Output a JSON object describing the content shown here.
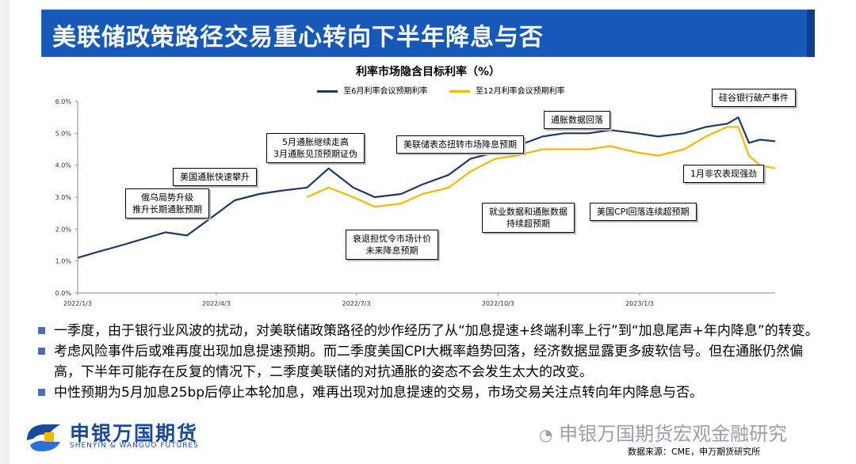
{
  "slide": {
    "title": "美联储政策路径交易重心转向下半年降息与否",
    "source": "数据来源：CME，申万期货研究所",
    "watermark": "申银万国期货宏观金融研究",
    "logo": {
      "cn": "申银万国期货",
      "en": "SHENYIN & WANGUO FUTURES"
    }
  },
  "bullets": [
    "一季度，由于银行业风波的扰动，对美联储政策路径的炒作经历了从“加息提速+终端利率上行”到“加息尾声+年内降息”的转变。",
    "考虑风险事件后或难再度出现加息提速预期。而二季度美国CPI大概率趋势回落，经济数据显露更多疲软信号。但在通胀仍然偏高，下半年可能存在反复的情况下，二季度美联储的对抗通胀的姿态不会发生太大的改变。",
    "中性预期为5月加息25bp后停止本轮加息，难再出现对加息提速的交易，市场交易关注点转向年内降息与否。"
  ],
  "chart_data": {
    "type": "line",
    "title": "利率市场隐含目标利率（%）",
    "ylim": [
      0,
      6
    ],
    "yticks": [
      "0.0%",
      "1.0%",
      "2.0%",
      "3.0%",
      "4.0%",
      "5.0%",
      "6.0%"
    ],
    "xticks": [
      "2022/1/3",
      "2022/4/3",
      "2022/7/3",
      "2022/10/3",
      "2023/1/3"
    ],
    "x": [
      "2022/1/3",
      "2022/1/17",
      "2022/2/1",
      "2022/2/15",
      "2022/3/1",
      "2022/3/15",
      "2022/4/1",
      "2022/4/15",
      "2022/5/1",
      "2022/5/15",
      "2022/6/1",
      "2022/6/15",
      "2022/7/1",
      "2022/7/15",
      "2022/8/1",
      "2022/8/15",
      "2022/9/1",
      "2022/9/15",
      "2022/10/1",
      "2022/10/15",
      "2022/11/1",
      "2022/11/15",
      "2022/12/1",
      "2022/12/15",
      "2023/1/1",
      "2023/1/15",
      "2023/2/1",
      "2023/2/15",
      "2023/3/1",
      "2023/3/8",
      "2023/3/15",
      "2023/3/22",
      "2023/4/1"
    ],
    "series": [
      {
        "name": "至6月利率会议预期利率",
        "color": "#1f3864",
        "values": [
          1.1,
          1.3,
          1.5,
          1.7,
          1.9,
          1.8,
          2.4,
          2.9,
          3.1,
          3.2,
          3.3,
          3.9,
          3.3,
          3.0,
          3.1,
          3.4,
          3.7,
          4.2,
          4.4,
          4.6,
          4.9,
          5.0,
          5.0,
          5.1,
          5.0,
          4.9,
          5.0,
          5.2,
          5.3,
          5.5,
          4.7,
          4.8,
          4.75
        ]
      },
      {
        "name": "至12月利率会议预期利率",
        "color": "#f5b800",
        "values": [
          null,
          null,
          null,
          null,
          null,
          null,
          null,
          null,
          null,
          null,
          3.0,
          3.3,
          3.0,
          2.7,
          2.8,
          3.1,
          3.3,
          3.8,
          4.2,
          4.3,
          4.5,
          4.5,
          4.5,
          4.6,
          4.4,
          4.3,
          4.5,
          4.9,
          5.2,
          5.2,
          4.3,
          4.0,
          3.9
        ]
      }
    ],
    "annotations": [
      "俄乌局势升级\n推升长期通胀预期",
      "美国通胀快速攀升",
      "5月通胀继续走高\n3月通胀见顶预期证伪",
      "衰退担忧令市场计价\n未来降息预期",
      "美联储表态扭转市场降息预期",
      "通胀数据回落",
      "就业数据和通胀数据\n持续超预期",
      "美国CPI回落连续超预期",
      "硅谷银行破产事件",
      "1月非农表现强劲"
    ]
  }
}
